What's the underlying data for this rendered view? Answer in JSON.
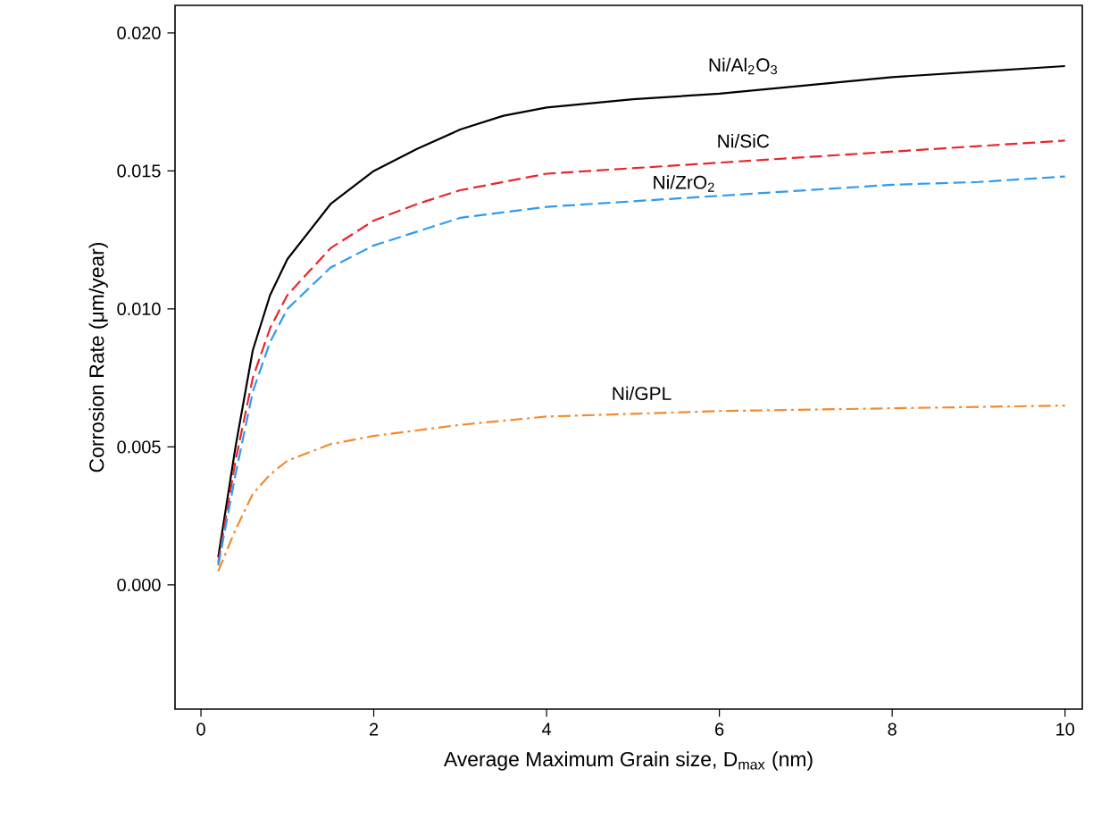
{
  "chart_data": {
    "type": "line",
    "xlabel": "Average Maximum Grain size, D$_{max}$ (nm)",
    "ylabel": "Corrosion Rate (μm/year)",
    "xlim": [
      -0.3,
      10.2
    ],
    "ylim": [
      -0.0045,
      0.021
    ],
    "xticks": [
      0,
      2,
      4,
      6,
      8,
      10
    ],
    "yticks": [
      {
        "value": 0,
        "label": "0.000"
      },
      {
        "value": 0.005,
        "label": "0.005"
      },
      {
        "value": 0.01,
        "label": "0.010"
      },
      {
        "value": 0.015,
        "label": "0.015"
      },
      {
        "value": 0.02,
        "label": "0.020"
      }
    ],
    "grid": false,
    "legend": false,
    "marker": "none",
    "series": [
      {
        "name": "Ni/Al$_{2}$O$_{3}$",
        "color": "#000000",
        "line_style": "solid",
        "x": [
          0.2,
          0.4,
          0.6,
          0.8,
          1.0,
          1.5,
          2,
          2.5,
          3,
          3.5,
          4,
          5,
          6,
          7,
          8,
          9,
          10
        ],
        "values": [
          0.001,
          0.005,
          0.0085,
          0.0105,
          0.0118,
          0.0138,
          0.015,
          0.0158,
          0.0165,
          0.017,
          0.0173,
          0.0176,
          0.0178,
          0.0181,
          0.0184,
          0.0186,
          0.0188
        ]
      },
      {
        "name": "Ni/SiC",
        "color": "#e8262b",
        "line_style": "dashed",
        "x": [
          0.2,
          0.4,
          0.6,
          0.8,
          1.0,
          1.5,
          2,
          2.5,
          3,
          4,
          5,
          6,
          7,
          8,
          9,
          10
        ],
        "values": [
          0.0008,
          0.0045,
          0.0075,
          0.0093,
          0.0105,
          0.0122,
          0.0132,
          0.0138,
          0.0143,
          0.0149,
          0.0151,
          0.0153,
          0.0155,
          0.0157,
          0.0159,
          0.0161
        ]
      },
      {
        "name": "Ni/ZrO$_{2}$",
        "color": "#2e9bf0",
        "line_style": "dashed",
        "x": [
          0.2,
          0.4,
          0.6,
          0.8,
          1.0,
          1.5,
          2,
          2.5,
          3,
          4,
          5,
          6,
          7,
          8,
          9,
          10
        ],
        "values": [
          0.0007,
          0.004,
          0.007,
          0.0088,
          0.01,
          0.0115,
          0.0123,
          0.0128,
          0.0133,
          0.0137,
          0.0139,
          0.0141,
          0.0143,
          0.0145,
          0.0146,
          0.0148
        ]
      },
      {
        "name": "Ni/GPL",
        "color": "#f28a2e",
        "line_style": "dashdot",
        "x": [
          0.2,
          0.4,
          0.6,
          0.8,
          1.0,
          1.5,
          2,
          3,
          4,
          5,
          6,
          8,
          10
        ],
        "values": [
          0.0005,
          0.002,
          0.0033,
          0.004,
          0.0045,
          0.0051,
          0.0054,
          0.0058,
          0.0061,
          0.0062,
          0.0063,
          0.0064,
          0.0065
        ]
      }
    ]
  }
}
